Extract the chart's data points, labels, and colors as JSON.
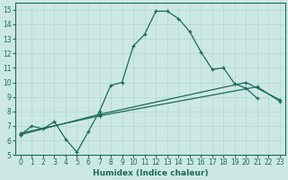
{
  "xlabel": "Humidex (Indice chaleur)",
  "xlim": [
    -0.5,
    23.5
  ],
  "ylim": [
    5,
    15.5
  ],
  "yticks": [
    5,
    6,
    7,
    8,
    9,
    10,
    11,
    12,
    13,
    14,
    15
  ],
  "xticks": [
    0,
    1,
    2,
    3,
    4,
    5,
    6,
    7,
    8,
    9,
    10,
    11,
    12,
    13,
    14,
    15,
    16,
    17,
    18,
    19,
    20,
    21,
    22,
    23
  ],
  "bg_color": "#cce8e4",
  "line_color": "#1a6b5a",
  "grid_color": "#b0d8d0",
  "line1_x": [
    0,
    1,
    2,
    3,
    4,
    5,
    6,
    7,
    8,
    9,
    10,
    11,
    12,
    13,
    14,
    15,
    16,
    17,
    18,
    19,
    20,
    21
  ],
  "line1_y": [
    6.4,
    7.0,
    6.8,
    7.3,
    6.1,
    5.2,
    6.6,
    8.0,
    9.8,
    10.0,
    12.5,
    13.3,
    14.9,
    14.9,
    14.4,
    13.5,
    12.1,
    10.9,
    11.0,
    9.9,
    9.6,
    8.9
  ],
  "line2_x": [
    0,
    7,
    21,
    23
  ],
  "line2_y": [
    6.5,
    7.7,
    9.7,
    8.7
  ],
  "line3_x": [
    0,
    7,
    20,
    23
  ],
  "line3_y": [
    6.4,
    7.8,
    10.0,
    8.8
  ],
  "tick_fontsize": 5.5,
  "xlabel_fontsize": 6.5
}
